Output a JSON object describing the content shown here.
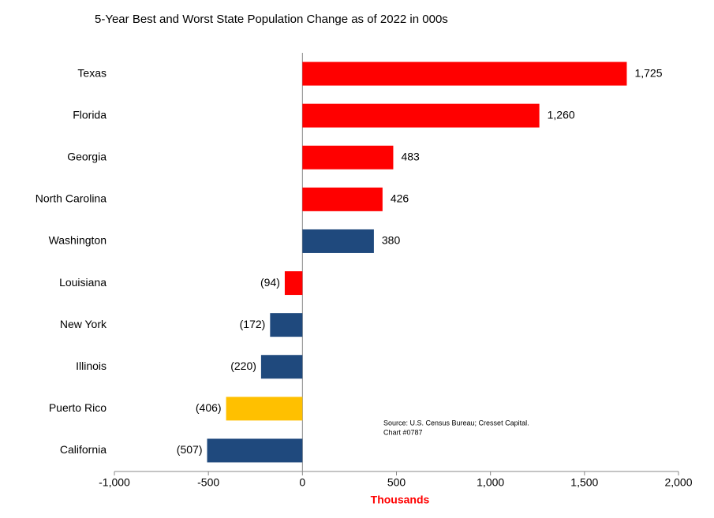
{
  "chart_data": {
    "type": "hbar",
    "title": "5-Year Best and Worst State Population Change as of 2022 in 000s",
    "categories": [
      "Texas",
      "Florida",
      "Georgia",
      "North Carolina",
      "Washington",
      "Louisiana",
      "New York",
      "Illinois",
      "Puerto Rico",
      "California"
    ],
    "values": [
      1725,
      1260,
      483,
      426,
      380,
      -94,
      -172,
      -220,
      -406,
      -507
    ],
    "value_labels": [
      "1,725",
      "1,260",
      "483",
      "426",
      "380",
      "(94)",
      "(172)",
      "(220)",
      "(406)",
      "(507)"
    ],
    "colors": [
      "#ff0000",
      "#ff0000",
      "#ff0000",
      "#ff0000",
      "#1f497d",
      "#ff0000",
      "#1f497d",
      "#1f497d",
      "#ffc000",
      "#1f497d"
    ],
    "xlabel": "Thousands",
    "xlim": [
      -1000,
      2000
    ],
    "xticks": [
      {
        "value": -1000,
        "label": "-1,000"
      },
      -500,
      0,
      500,
      {
        "value": 1000,
        "label": "1,000"
      },
      {
        "value": 1500,
        "label": "1,500"
      },
      {
        "value": 2000,
        "label": "2,000"
      }
    ],
    "notes": [
      "Source: U.S. Census Bureau; Cresset Capital.",
      "Chart #0787"
    ]
  }
}
